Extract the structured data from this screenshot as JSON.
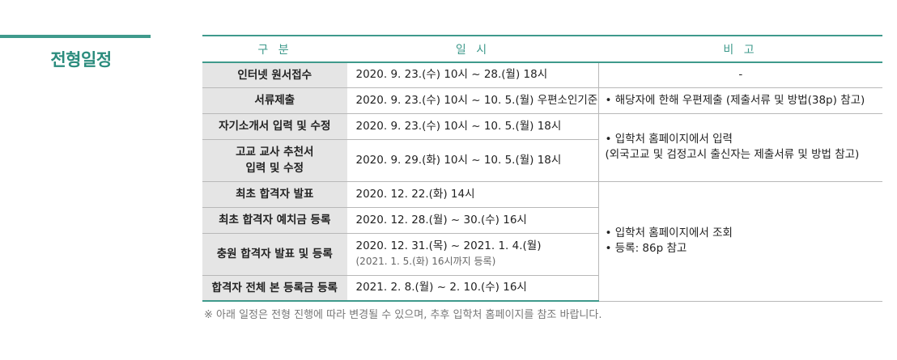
{
  "section_title": "전형일정",
  "table": {
    "headers": [
      "구 분",
      "일 시",
      "비 고"
    ],
    "rows": [
      {
        "gubun": "인터넷 원서접수",
        "date": "2020. 9. 23.(수) 10시 ~ 28.(월) 18시",
        "date_sub": ""
      },
      {
        "gubun": "서류제출",
        "date": "2020. 9. 23.(수) 10시 ~ 10. 5.(월) 우편소인기준",
        "date_sub": ""
      },
      {
        "gubun": "자기소개서 입력 및 수정",
        "date": "2020. 9. 23.(수) 10시 ~ 10. 5.(월) 18시",
        "date_sub": ""
      },
      {
        "gubun_line1": "고교 교사 추천서",
        "gubun_line2": "입력 및 수정",
        "date": "2020. 9. 29.(화) 10시 ~ 10. 5.(월) 18시",
        "date_sub": ""
      },
      {
        "gubun": "최초 합격자 발표",
        "date": "2020. 12. 22.(화) 14시",
        "date_sub": ""
      },
      {
        "gubun": "최초 합격자 예치금 등록",
        "date": "2020. 12. 28.(월) ~ 30.(수) 16시",
        "date_sub": ""
      },
      {
        "gubun": "충원 합격자 발표 및 등록",
        "date": "2020. 12. 31.(목) ~ 2021. 1. 4.(월)",
        "date_sub": "(2021. 1. 5.(화) 16시까지 등록)"
      },
      {
        "gubun": "합격자 전체 본 등록금 등록",
        "date": "2021. 2. 8.(월) ~ 2. 10.(수) 16시",
        "date_sub": ""
      }
    ],
    "notes": {
      "n1": "-",
      "n2": "• 해당자에 한해 우편제출 (제출서류 및 방법(38p) 참고)",
      "n3_line1": "• 입학처 홈페이지에서 입력",
      "n3_line2": "(외국고교 및 검정고시 출신자는 제출서류 및 방법 참고)",
      "n4_line1": "• 입학처 홈페이지에서 조회",
      "n4_line2": "• 등록: 86p 참고"
    }
  },
  "footnote": "※ 아래 일정은 전형 진행에 따라 변경될 수 있으며, 추후 입학처 홈페이지를 참조 바랍니다.",
  "colors": {
    "accent": "#3f9a8c",
    "title": "#2b8c7d",
    "cell_bg": "#e5e5e5"
  }
}
